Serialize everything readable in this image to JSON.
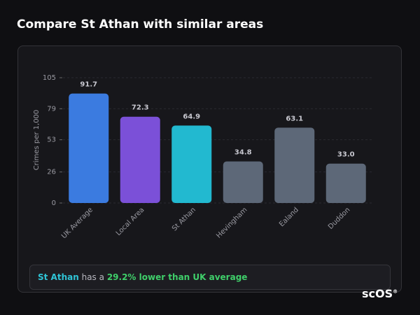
{
  "chart_data": {
    "type": "bar",
    "title": "Compare St Athan with similar areas",
    "y_label": "Crimes per 1,000",
    "categories": [
      "UK Average",
      "Local Area",
      "St Athan",
      "Hevingham",
      "Ealand",
      "Duddon"
    ],
    "values": [
      91.7,
      72.3,
      64.9,
      34.8,
      63.1,
      33.0
    ],
    "value_labels": [
      "91.7",
      "72.3",
      "64.9",
      "34.8",
      "63.1",
      "33.0"
    ],
    "colors": [
      "#3b7be0",
      "#7b50d8",
      "#22b9d0",
      "#5d6878",
      "#5d6878",
      "#5d6878"
    ],
    "ylim": [
      0,
      105
    ],
    "yticks": [
      0,
      26,
      53,
      79,
      105
    ],
    "grid": true
  },
  "summary": {
    "area": "St Athan",
    "text": "has a",
    "highlight": "29.2% lower than UK average"
  },
  "logo": "scOS"
}
